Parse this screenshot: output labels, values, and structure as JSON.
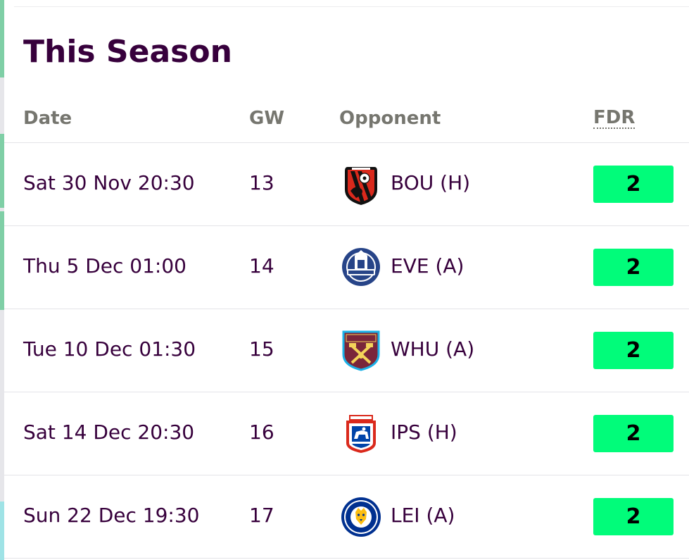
{
  "title": "This Season",
  "headers": {
    "date": "Date",
    "gw": "GW",
    "opponent": "Opponent",
    "fdr": "FDR"
  },
  "colors": {
    "title": "#37003c",
    "fdr_2": "#01fc7a",
    "header": "#76766f"
  },
  "fixtures": [
    {
      "date": "Sat 30 Nov 20:30",
      "gw": "13",
      "opponent": "BOU (H)",
      "badge": "bournemouth-badge-icon",
      "fdr": "2"
    },
    {
      "date": "Thu 5 Dec 01:00",
      "gw": "14",
      "opponent": "EVE (A)",
      "badge": "everton-badge-icon",
      "fdr": "2"
    },
    {
      "date": "Tue 10 Dec 01:30",
      "gw": "15",
      "opponent": "WHU (A)",
      "badge": "west-ham-badge-icon",
      "fdr": "2"
    },
    {
      "date": "Sat 14 Dec 20:30",
      "gw": "16",
      "opponent": "IPS (H)",
      "badge": "ipswich-badge-icon",
      "fdr": "2"
    },
    {
      "date": "Sun 22 Dec 19:30",
      "gw": "17",
      "opponent": "LEI (A)",
      "badge": "leicester-badge-icon",
      "fdr": "2"
    }
  ]
}
